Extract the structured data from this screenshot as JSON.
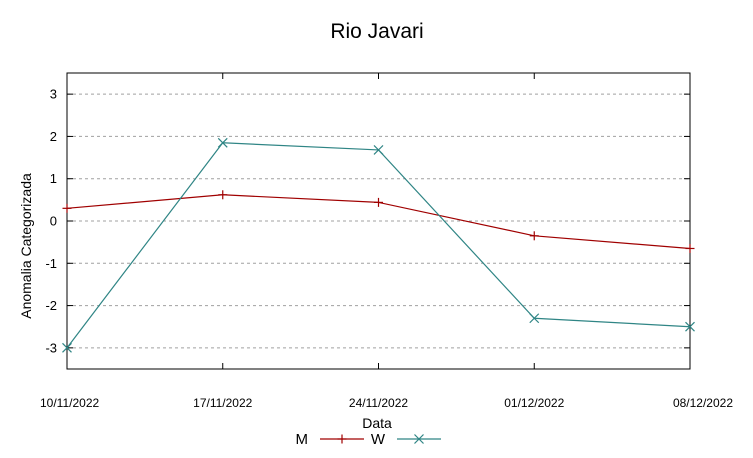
{
  "chart_data": {
    "type": "line",
    "title": "Rio Javari",
    "xlabel": "Data",
    "ylabel": "Anomalia Categorizada",
    "categories": [
      "10/11/2022",
      "17/11/2022",
      "24/11/2022",
      "01/12/2022",
      "08/12/2022"
    ],
    "yticks": [
      "3",
      "2",
      "1",
      "0",
      "-1",
      "-2",
      "-3"
    ],
    "ylim": [
      -3.5,
      3.5
    ],
    "grid": true,
    "legend_position": "bottom",
    "series": [
      {
        "name": "M",
        "color": "#a00000",
        "marker": "plus",
        "values": [
          0.3,
          0.62,
          0.44,
          -0.35,
          -0.65
        ]
      },
      {
        "name": "W",
        "color": "#2f8585",
        "marker": "cross",
        "values": [
          -3.0,
          1.85,
          1.68,
          -2.3,
          -2.5
        ]
      }
    ]
  }
}
